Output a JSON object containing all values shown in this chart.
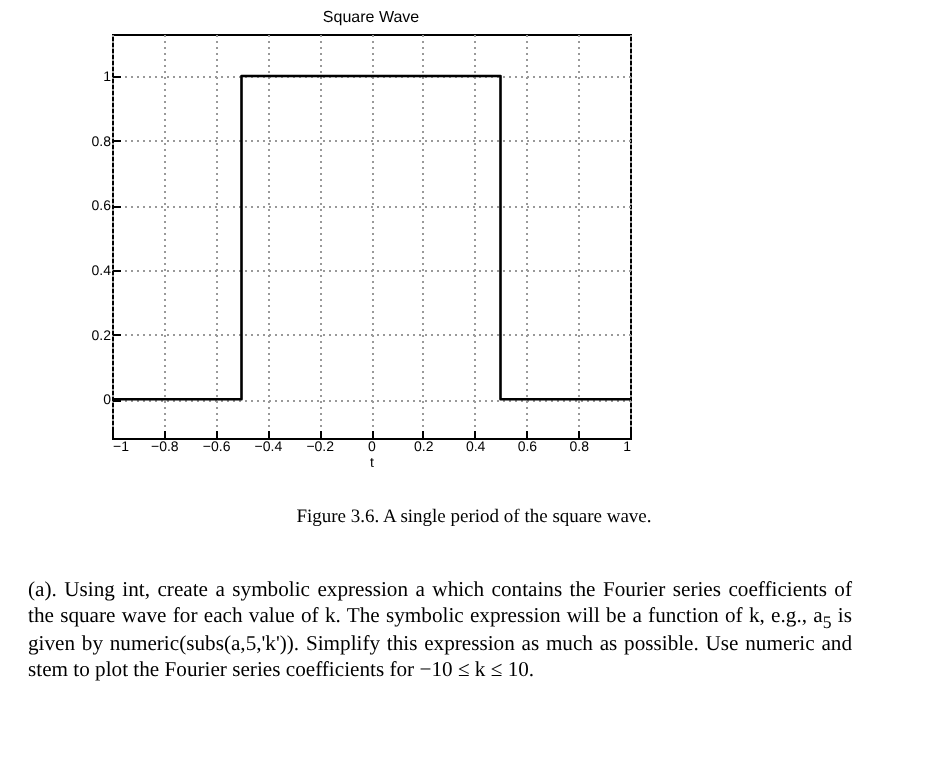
{
  "chart_data": {
    "type": "line",
    "title": "Square Wave",
    "xlabel": "t",
    "x": [
      -1,
      -0.5,
      -0.5,
      0.5,
      0.5,
      1
    ],
    "series": [
      {
        "color": "#000000",
        "values": [
          0,
          0,
          1,
          1,
          0,
          0
        ]
      }
    ],
    "xlim": [
      -1,
      1
    ],
    "xticks": [
      -1,
      -0.8,
      -0.6,
      -0.4,
      -0.2,
      0,
      0.2,
      0.4,
      0.6,
      0.8,
      1
    ],
    "ylim": [
      -0.12,
      1.13
    ],
    "yticks": [
      0,
      0.2,
      0.4,
      0.6,
      0.8,
      1
    ],
    "grid": true,
    "line_style": "solid",
    "annotations": [
      "Figure 3.6. A single period of the square wave.",
      "(a). Using int, create a symbolic expression a which contains the Fourier series coefficients of the square wave for each value of k. The symbolic expression will be a function of k, e.g., a$_{5}$ is given by numeric(subs(a,5,'k')). Simplify this expression as much as possible. Use numeric and stem to plot the Fourier series coefficients for −10 ≤ k ≤ 10."
    ]
  }
}
